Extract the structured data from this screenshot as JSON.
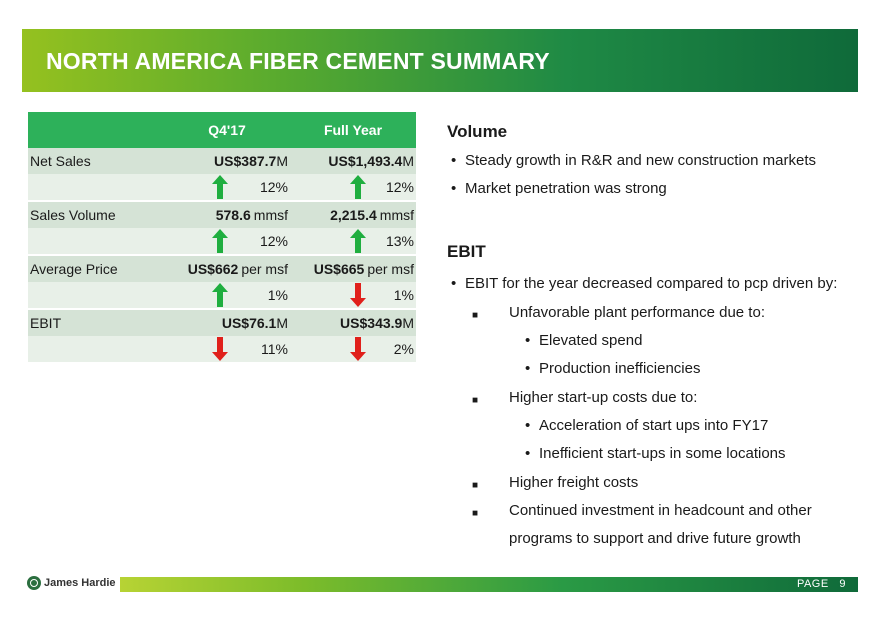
{
  "title": "NORTH AMERICA FIBER CEMENT SUMMARY",
  "table": {
    "headers": [
      "",
      "Q4'17",
      "Full Year"
    ],
    "rows": [
      {
        "label": "Net Sales",
        "q4_bold": "US$387.7",
        "q4_unit": "M",
        "fy_bold": "US$1,493.4",
        "fy_unit": "M",
        "q4_pct": "12%",
        "q4_dir": "up",
        "fy_pct": "12%",
        "fy_dir": "up"
      },
      {
        "label": "Sales Volume",
        "q4_bold": "578.6",
        "q4_unit": "mmsf",
        "fy_bold": "2,215.4",
        "fy_unit": "mmsf",
        "q4_pct": "12%",
        "q4_dir": "up",
        "fy_pct": "13%",
        "fy_dir": "up"
      },
      {
        "label": "Average Price",
        "q4_bold": "US$662",
        "q4_unit": "per msf",
        "fy_bold": "US$665",
        "fy_unit": "per msf",
        "q4_pct": "1%",
        "q4_dir": "up",
        "fy_pct": "1%",
        "fy_dir": "down"
      },
      {
        "label": "EBIT",
        "q4_bold": "US$76.1",
        "q4_unit": "M",
        "fy_bold": "US$343.9",
        "fy_unit": "M",
        "q4_pct": "11%",
        "q4_dir": "down",
        "fy_pct": "2%",
        "fy_dir": "down"
      }
    ]
  },
  "volume": {
    "heading": "Volume",
    "bullets": [
      "Steady growth in R&R and new construction markets",
      "Market penetration was strong"
    ]
  },
  "ebit": {
    "heading": "EBIT",
    "intro": "EBIT for the year decreased compared to pcp driven by:",
    "items": [
      "Unfavorable plant performance due to:",
      "Elevated spend",
      "Production inefficiencies",
      "Higher start-up costs due to:",
      "Acceleration of start ups into FY17",
      "Inefficient start-ups in some locations",
      "Higher freight costs",
      "Continued investment in headcount and other",
      "programs to support and drive future growth"
    ]
  },
  "footer": {
    "brand": "James Hardie",
    "page_label": "PAGE",
    "page_number": "9"
  },
  "colors": {
    "up": "#1fae3f",
    "down": "#e0201b",
    "header_green": "#2db15a"
  }
}
